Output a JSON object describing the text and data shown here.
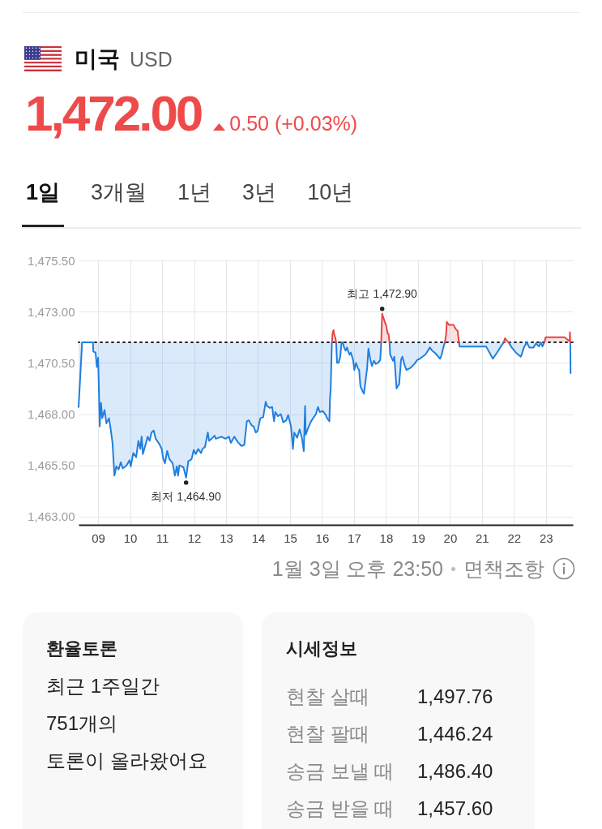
{
  "chart_data": [
    {
      "type": "line",
      "title": "미국",
      "subtitle": "USD",
      "annotations": [
        "1,472.00",
        "0.50 (+0.03%)",
        "1일",
        "3개월",
        "1년",
        "3년",
        "10년",
        "1월 3일 오후 23:50",
        "면책조항",
        {
          "text": "최고 1,472.90",
          "x": 17.88,
          "y": 1472.9
        },
        {
          "text": "최저 1,464.90",
          "x": 11.75,
          "y": 1464.9
        }
      ],
      "xlim": [
        8.39,
        23.84
      ],
      "ylim": [
        1462.6,
        1475.5
      ],
      "xticks": [
        {
          "value": 9,
          "label": "09"
        },
        10,
        11,
        12,
        13,
        14,
        15,
        16,
        17,
        18,
        19,
        20,
        21,
        22,
        23
      ],
      "yticks": [
        {
          "value": 1463,
          "label": "1,463.00"
        },
        {
          "value": 1465.5,
          "label": "1,465.50"
        },
        {
          "value": 1468,
          "label": "1,468.00"
        },
        {
          "value": 1470.5,
          "label": "1,470.50"
        },
        {
          "value": 1473,
          "label": "1,473.00"
        },
        {
          "value": 1475.5,
          "label": "1,475.50"
        }
      ],
      "grid": true,
      "ref_lines": [
        {
          "axis": "y",
          "value": 1471.5,
          "line_style": "dotted",
          "color": "#222222"
        }
      ],
      "series": [
        {
          "color": "#1f7fe0",
          "x": [
            8.39,
            8.5,
            8.84,
            8.85,
            8.92,
            8.96,
            9.0,
            9.02,
            9.05,
            9.09,
            9.13,
            9.2,
            9.26,
            9.34,
            9.39,
            9.45,
            9.51,
            9.57,
            9.64,
            9.71,
            9.77,
            9.89,
            9.98,
            10.02,
            10.1,
            10.19,
            10.26,
            10.32,
            10.36,
            10.4,
            10.49,
            10.55,
            10.61,
            10.67,
            10.74,
            10.8,
            10.91,
            10.99,
            11.03,
            11.09,
            11.16,
            11.23,
            11.33,
            11.4,
            11.46,
            11.5,
            11.54,
            11.67,
            11.75,
            11.82,
            11.92,
            11.99,
            12.05,
            12.13,
            12.22,
            12.26,
            12.34,
            12.43,
            12.47,
            12.55,
            12.64,
            12.68,
            12.85,
            12.98,
            13.09,
            13.15,
            13.26,
            13.36,
            13.48,
            13.57,
            13.65,
            13.71,
            13.8,
            13.86,
            13.93,
            13.99,
            14.07,
            14.16,
            14.24,
            14.28,
            14.37,
            14.44,
            14.5,
            14.54,
            14.62,
            14.71,
            14.79,
            14.88,
            14.94,
            15.03,
            15.09,
            15.13,
            15.22,
            15.3,
            15.37,
            15.43,
            15.47,
            15.49,
            15.55,
            15.64,
            15.72,
            15.81,
            15.87,
            15.93,
            16.02,
            16.1,
            16.16,
            16.23,
            16.25,
            16.27,
            16.3,
            16.31,
            16.38,
            16.44,
            16.47,
            16.52,
            16.57,
            16.61,
            16.63,
            16.65,
            16.69,
            16.74,
            16.78,
            16.82,
            16.86,
            16.9,
            16.97,
            17.01,
            17.06,
            17.12,
            17.16,
            17.2,
            17.26,
            17.31,
            17.37,
            17.41,
            17.45,
            17.51,
            17.56,
            17.62,
            17.68,
            17.75,
            17.82,
            17.85,
            17.98,
            18.11,
            18.13,
            18.22,
            18.26,
            18.33,
            18.36,
            18.41,
            18.47,
            18.51,
            18.58,
            18.64,
            18.76,
            18.89,
            18.98,
            19.06,
            19.14,
            19.23,
            19.31,
            19.37,
            19.44,
            19.52,
            19.61,
            19.69,
            19.74,
            19.8,
            19.84,
            20.06,
            20.28,
            20.3,
            21.13,
            21.34,
            21.47,
            21.59,
            21.68,
            21.75,
            21.83,
            21.93,
            22.06,
            22.21,
            22.24,
            22.31,
            22.4,
            22.48,
            22.61,
            22.69,
            22.78,
            22.84,
            22.89,
            22.95,
            23.35,
            23.76,
            23.77
          ],
          "values": [
            1468.35,
            1471.5,
            1471.5,
            1471.05,
            1471.0,
            1470.3,
            1470.75,
            1469.55,
            1467.4,
            1468.55,
            1467.8,
            1468.2,
            1467.55,
            1467.8,
            1467.3,
            1466.6,
            1465.0,
            1465.45,
            1465.3,
            1465.65,
            1465.35,
            1465.5,
            1465.75,
            1465.45,
            1466.1,
            1465.9,
            1466.7,
            1466.3,
            1466.9,
            1466.05,
            1466.55,
            1466.9,
            1466.7,
            1467.1,
            1467.2,
            1466.8,
            1466.55,
            1466.3,
            1465.85,
            1465.6,
            1466.2,
            1465.8,
            1465.6,
            1465.0,
            1465.45,
            1465.0,
            1465.5,
            1465.4,
            1464.9,
            1465.7,
            1465.8,
            1466.25,
            1466.05,
            1466.3,
            1466.1,
            1466.3,
            1466.4,
            1467.1,
            1466.7,
            1466.8,
            1466.95,
            1466.8,
            1466.9,
            1466.8,
            1466.9,
            1466.6,
            1466.9,
            1466.65,
            1466.45,
            1466.5,
            1467.65,
            1467.7,
            1467.45,
            1467.4,
            1467.1,
            1467.2,
            1467.8,
            1467.85,
            1468.6,
            1468.4,
            1468.3,
            1468.35,
            1467.65,
            1468.1,
            1467.9,
            1468.0,
            1467.6,
            1467.7,
            1467.95,
            1467.4,
            1466.3,
            1467.1,
            1466.85,
            1467.25,
            1466.85,
            1466.2,
            1468.4,
            1467.0,
            1467.25,
            1467.6,
            1467.8,
            1468.0,
            1468.35,
            1468.1,
            1468.15,
            1468.0,
            1467.8,
            1467.65,
            1468.8,
            1469.2,
            1471.05,
            1471.5,
            null,
            1471.5,
            1470.5,
            1470.5,
            1470.8,
            1471.5,
            1471.5,
            1471.5,
            1471.25,
            1471.1,
            1471.25,
            1471.05,
            1470.9,
            1471.0,
            1470.65,
            1470.15,
            1470.5,
            1470.25,
            1470.15,
            1469.35,
            1469.15,
            1469.0,
            1469.75,
            1470.25,
            1471.2,
            1470.65,
            1470.35,
            1470.6,
            1470.45,
            1470.5,
            1470.65,
            1471.5,
            null,
            1471.5,
            1470.9,
            1470.6,
            1470.8,
            1469.25,
            1469.35,
            1469.45,
            1470.65,
            1470.8,
            1470.4,
            1470.15,
            1470.25,
            1470.45,
            1470.65,
            1470.7,
            1470.8,
            1470.9,
            1471.1,
            1471.25,
            1471.1,
            1471.0,
            1470.85,
            1470.7,
            1470.9,
            1471.3,
            1471.5,
            null,
            1471.5,
            1471.3,
            1471.3,
            1470.7,
            1471.0,
            1471.3,
            1471.5,
            null,
            1471.5,
            1471.25,
            1471.0,
            1470.8,
            1470.9,
            1471.25,
            1471.5,
            1471.25,
            1471.25,
            1471.45,
            1471.3,
            1471.5,
            1471.3,
            1471.5,
            null,
            1471.5,
            1470.0
          ],
          "lower": [
            1468.35,
            1471.5,
            1471.5,
            1471.05,
            1471.0,
            1470.3,
            1470.75,
            1469.55,
            1467.4,
            1468.55,
            1467.8,
            1468.2,
            1467.55,
            1467.8,
            1467.3,
            1466.6,
            1465.0,
            1465.45,
            1465.3,
            1465.65,
            1465.35,
            1465.5,
            1465.75,
            1465.45,
            1466.1,
            1465.9,
            1466.7,
            1466.3,
            1466.9,
            1466.05,
            1466.55,
            1466.9,
            1466.7,
            1467.1,
            1467.2,
            1466.8,
            1466.55,
            1466.3,
            1465.85,
            1465.6,
            1466.2,
            1465.8,
            1465.6,
            1465.0,
            1465.45,
            1465.0,
            1465.5,
            1465.4,
            1464.9,
            1465.7,
            1465.8,
            1466.25,
            1466.05,
            1466.3,
            1466.1,
            1466.3,
            1466.4,
            1467.1,
            1466.7,
            1466.8,
            1466.95,
            1466.8,
            1466.9,
            1466.8,
            1466.9,
            1466.6,
            1466.9,
            1466.65,
            1466.45,
            1466.5,
            1467.65,
            1467.7,
            1467.45,
            1467.4,
            1467.1,
            1467.2,
            1467.8,
            1467.85,
            1468.6,
            1468.4,
            1468.3,
            1468.35,
            1467.65,
            1468.1,
            1467.9,
            1468.0,
            1467.6,
            1467.7,
            1467.95,
            1467.4,
            1466.3,
            1467.1,
            1466.85,
            1467.25,
            1466.85,
            1466.2,
            1468.4,
            1467.0,
            1467.25,
            1467.6,
            1467.8,
            1468.0,
            1468.35,
            1468.1,
            1468.15,
            1468.0,
            1467.8,
            1467.65,
            1468.8,
            1469.2,
            1471.05,
            1471.5,
            null,
            1471.5,
            1470.5,
            1470.5,
            1470.8,
            1471.5,
            1471.5,
            1471.5,
            1471.25,
            1471.1,
            1471.25,
            1471.05,
            1470.9,
            1471.0,
            1470.65,
            1470.15,
            1470.5,
            1470.25,
            1470.15,
            1469.35,
            1469.15,
            1469.0,
            1469.75,
            1470.25,
            1471.2,
            1470.65,
            1470.35,
            1470.6,
            1470.45,
            1470.5,
            1470.65,
            1471.5,
            null,
            1471.5,
            1470.9,
            1470.6,
            1470.8,
            1469.25,
            1469.35,
            1469.45,
            1470.65,
            1470.8,
            1470.4,
            1470.15,
            1470.25,
            1470.45,
            1470.65,
            1470.7,
            1470.8,
            1470.9,
            1471.1,
            1471.25,
            1471.1,
            1471.0,
            1470.85,
            1470.7,
            1470.9,
            1471.3,
            1471.5,
            null,
            1471.5,
            1471.3,
            1471.3,
            1470.7,
            1471.0,
            1471.3,
            1471.5,
            null,
            1471.5,
            1471.25,
            1471.0,
            1470.8,
            1470.9,
            1471.25,
            1471.5,
            1471.25,
            1471.25,
            1471.45,
            1471.3,
            1471.5,
            1471.3,
            1471.5,
            null,
            1471.5,
            1470.0
          ],
          "upper": [
            1471.5,
            1471.5,
            1471.5,
            1471.5,
            1471.5,
            1471.5,
            1471.5,
            1471.5,
            1471.5,
            1471.5,
            1471.5,
            1471.5,
            1471.5,
            1471.5,
            1471.5,
            1471.5,
            1471.5,
            1471.5,
            1471.5,
            1471.5,
            1471.5,
            1471.5,
            1471.5,
            1471.5,
            1471.5,
            1471.5,
            1471.5,
            1471.5,
            1471.5,
            1471.5,
            1471.5,
            1471.5,
            1471.5,
            1471.5,
            1471.5,
            1471.5,
            1471.5,
            1471.5,
            1471.5,
            1471.5,
            1471.5,
            1471.5,
            1471.5,
            1471.5,
            1471.5,
            1471.5,
            1471.5,
            1471.5,
            1471.5,
            1471.5,
            1471.5,
            1471.5,
            1471.5,
            1471.5,
            1471.5,
            1471.5,
            1471.5,
            1471.5,
            1471.5,
            1471.5,
            1471.5,
            1471.5,
            1471.5,
            1471.5,
            1471.5,
            1471.5,
            1471.5,
            1471.5,
            1471.5,
            1471.5,
            1471.5,
            1471.5,
            1471.5,
            1471.5,
            1471.5,
            1471.5,
            1471.5,
            1471.5,
            1471.5,
            1471.5,
            1471.5,
            1471.5,
            1471.5,
            1471.5,
            1471.5,
            1471.5,
            1471.5,
            1471.5,
            1471.5,
            1471.5,
            1471.5,
            1471.5,
            1471.5,
            1471.5,
            1471.5,
            1471.5,
            1471.5,
            1471.5,
            1471.5,
            1471.5,
            1471.5,
            1471.5,
            1471.5,
            1471.5,
            1471.5,
            1471.5,
            1471.5,
            1471.5,
            1471.5,
            1471.5,
            1471.5,
            1471.5,
            null,
            1471.5,
            1471.5,
            1471.5,
            1471.5,
            1471.5,
            1471.5,
            1471.5,
            1471.5,
            1471.5,
            1471.5,
            1471.5,
            1471.5,
            1471.5,
            1471.5,
            1471.5,
            1471.5,
            1471.5,
            1471.5,
            1471.5,
            1471.5,
            1471.5,
            1471.5,
            1471.5,
            1471.5,
            1471.5,
            1471.5,
            1471.5,
            1471.5,
            1471.5,
            1471.5,
            1471.5,
            null,
            1471.5,
            1471.5,
            1471.5,
            1471.5,
            1471.5,
            1471.5,
            1471.5,
            1471.5,
            1471.5,
            1471.5,
            1471.5,
            1471.5,
            1471.5,
            1471.5,
            1471.5,
            1471.5,
            1471.5,
            1471.5,
            1471.5,
            1471.5,
            1471.5,
            1471.5,
            1471.5,
            1471.5,
            1471.5,
            1471.5,
            null,
            1471.5,
            1471.5,
            1471.5,
            1471.5,
            1471.5,
            1471.5,
            1471.5,
            null,
            1471.5,
            1471.5,
            1471.5,
            1471.5,
            1471.5,
            1471.5,
            1471.5,
            1471.5,
            1471.5,
            1471.5,
            1471.5,
            1471.5,
            1471.5,
            1471.5,
            null,
            1471.5,
            1471.5
          ]
        },
        {
          "color": "#e64646",
          "x": [
            16.31,
            16.33,
            16.36,
            16.38,
            16.42,
            16.44,
            17.2,
            17.85,
            17.88,
            17.92,
            17.96,
            18.0,
            18.05,
            18.08,
            18.11,
            19.0,
            19.84,
            19.88,
            19.9,
            19.97,
            20.11,
            20.18,
            20.24,
            20.28,
            21.0,
            21.68,
            21.72,
            21.8,
            21.83,
            22.4,
            22.95,
            22.99,
            23.58,
            23.74,
            23.75,
            23.76
          ],
          "values": [
            1471.5,
            1471.95,
            1472.1,
            1471.9,
            1471.7,
            1471.5,
            null,
            1471.5,
            1472.9,
            1472.7,
            1472.5,
            1472.35,
            1471.95,
            1471.9,
            1471.5,
            null,
            1471.5,
            1471.9,
            1472.5,
            1472.35,
            1472.35,
            1472.15,
            1472.05,
            1471.5,
            null,
            1471.5,
            1471.7,
            1471.55,
            1471.5,
            null,
            1471.5,
            1471.75,
            1471.75,
            1471.55,
            1472.0,
            1471.5
          ],
          "lower": [
            1471.5,
            1471.5,
            1471.5,
            1471.5,
            1471.5,
            1471.5,
            null,
            1471.5,
            1471.5,
            1471.5,
            1471.5,
            1471.5,
            1471.5,
            1471.5,
            1471.5,
            null,
            1471.5,
            1471.5,
            1471.5,
            1471.5,
            1471.5,
            1471.5,
            1471.5,
            1471.5,
            null,
            null,
            null,
            null,
            null,
            null,
            1471.5,
            1471.5,
            1471.5,
            1471.5,
            1471.5,
            1471.5
          ],
          "upper": [
            1471.5,
            1471.95,
            1472.1,
            1471.9,
            1471.7,
            1471.5,
            null,
            1471.5,
            1472.9,
            1472.7,
            1472.5,
            1472.35,
            1471.95,
            1471.9,
            1471.5,
            null,
            1471.5,
            1471.9,
            1472.5,
            1472.35,
            1472.35,
            1472.15,
            1472.05,
            1471.5,
            null,
            null,
            null,
            null,
            null,
            null,
            1471.5,
            1471.75,
            1471.75,
            1471.55,
            1472.0,
            1471.5
          ]
        }
      ]
    },
    {
      "type": "other",
      "title": "환율토론",
      "annotations": [
        "최근 1주일간",
        "751개의",
        "토론이 올라왔어요"
      ]
    },
    {
      "type": "other",
      "title": "시세정보",
      "categories": [
        "현찰 살때",
        "현찰 팔때",
        "송금 보낼 때",
        "송금 받을 때"
      ],
      "annotations": [
        "1,497.76",
        "1,446.24",
        "1,486.40",
        "1,457.60"
      ]
    }
  ]
}
